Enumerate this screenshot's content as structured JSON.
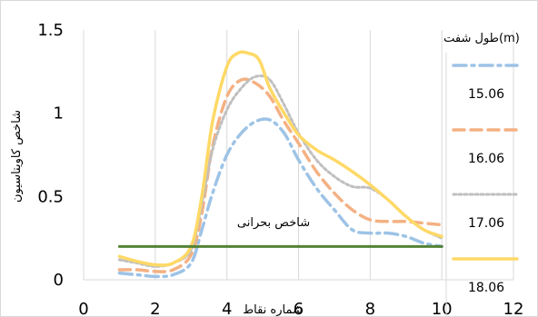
{
  "chart_data": {
    "type": "line",
    "title": "",
    "xlabel": "شماره نقاط",
    "ylabel": "شاخص کاویتاسیون",
    "xlim": [
      0,
      12
    ],
    "ylim": [
      0,
      1.5
    ],
    "x_ticks": [
      "0",
      "2",
      "4",
      "6",
      "8",
      "10",
      "12"
    ],
    "y_ticks": [
      "0",
      "0.5",
      "1",
      "1.5"
    ],
    "grid": "vertical",
    "legend_title": "طول شفت(m)",
    "legend_position": "right",
    "threshold_label": "شاخص بحرانی",
    "series": [
      {
        "name": "15.06",
        "color": "#9dc3e6",
        "style": "dashdot",
        "x": [
          1,
          1.5,
          2,
          2.5,
          3,
          3.3,
          3.6,
          4,
          4.4,
          4.8,
          5.2,
          5.6,
          6,
          6.5,
          7,
          7.5,
          8,
          8.5,
          9,
          9.5,
          10
        ],
        "y": [
          0.04,
          0.03,
          0.02,
          0.03,
          0.1,
          0.3,
          0.52,
          0.75,
          0.88,
          0.95,
          0.96,
          0.88,
          0.72,
          0.55,
          0.42,
          0.3,
          0.28,
          0.28,
          0.26,
          0.22,
          0.2
        ]
      },
      {
        "name": "16.06",
        "color": "#f4b183",
        "style": "dash",
        "x": [
          1,
          1.5,
          2,
          2.5,
          3,
          3.3,
          3.6,
          4,
          4.4,
          4.8,
          5.2,
          5.6,
          6,
          6.5,
          7,
          7.5,
          8,
          8.5,
          9,
          9.5,
          10
        ],
        "y": [
          0.06,
          0.06,
          0.05,
          0.06,
          0.15,
          0.4,
          0.8,
          1.1,
          1.2,
          1.18,
          1.1,
          0.95,
          0.82,
          0.65,
          0.52,
          0.42,
          0.36,
          0.35,
          0.35,
          0.34,
          0.33
        ]
      },
      {
        "name": "17.06",
        "color": "#bfbfbf",
        "style": "dot",
        "x": [
          1,
          1.5,
          2,
          2.5,
          3,
          3.3,
          3.6,
          4,
          4.4,
          4.8,
          5.2,
          5.6,
          6,
          6.5,
          7,
          7.5,
          8,
          8.5,
          9,
          9.5,
          10
        ],
        "y": [
          0.12,
          0.1,
          0.08,
          0.1,
          0.18,
          0.45,
          0.78,
          1.02,
          1.15,
          1.22,
          1.2,
          1.05,
          0.88,
          0.72,
          0.62,
          0.56,
          0.55,
          0.48,
          0.38,
          0.3,
          0.25
        ]
      },
      {
        "name": "18.06",
        "color": "#ffd966",
        "style": "solid",
        "x": [
          1,
          1.5,
          2,
          2.5,
          3,
          3.3,
          3.6,
          4,
          4.3,
          4.6,
          4.9,
          5.2,
          5.6,
          6,
          6.5,
          7,
          7.5,
          8,
          8.5,
          9,
          9.5,
          10
        ],
        "y": [
          0.14,
          0.11,
          0.09,
          0.1,
          0.2,
          0.5,
          0.95,
          1.28,
          1.36,
          1.36,
          1.32,
          1.15,
          1.0,
          0.87,
          0.78,
          0.72,
          0.65,
          0.57,
          0.48,
          0.38,
          0.3,
          0.26
        ]
      },
      {
        "name": "شاخص بحرانی",
        "color": "#548235",
        "style": "solid",
        "x": [
          1,
          10
        ],
        "y": [
          0.2,
          0.2
        ]
      }
    ]
  }
}
